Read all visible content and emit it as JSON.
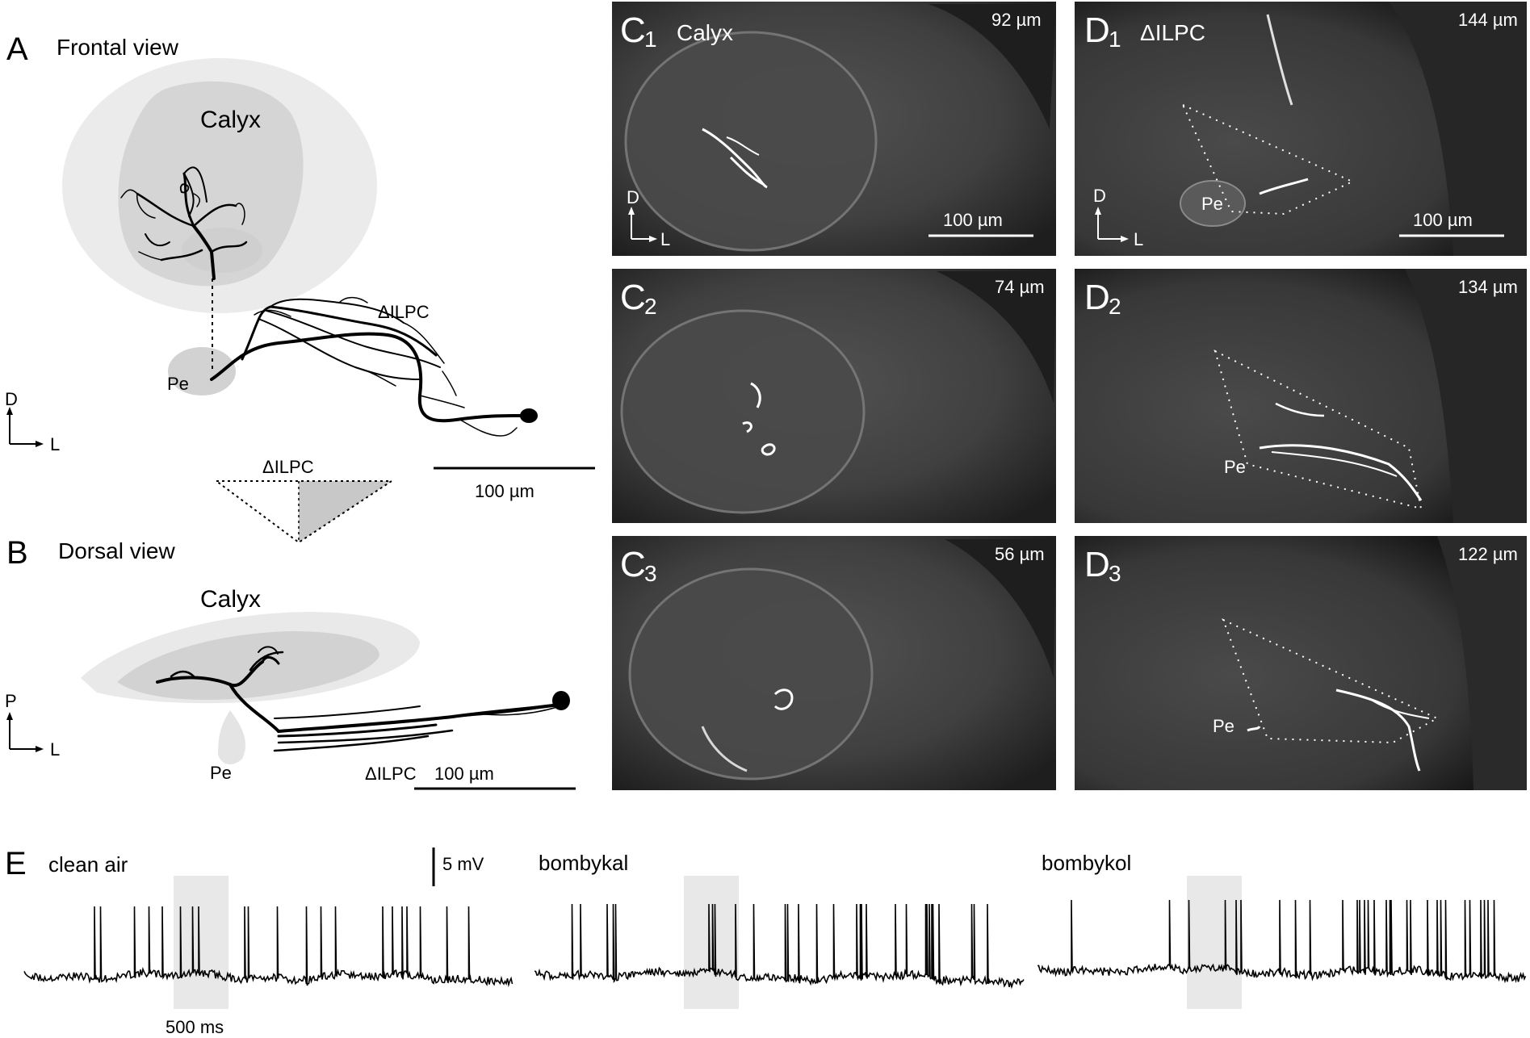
{
  "panels": {
    "A": {
      "letter": "A",
      "title": "Frontal view",
      "calyx": "Calyx",
      "ilpc": "ΔILPC",
      "pe": "Pe",
      "axis_v": "D",
      "axis_h": "L",
      "scale": "100 µm",
      "inset_label": "ΔILPC"
    },
    "B": {
      "letter": "B",
      "title": "Dorsal view",
      "calyx": "Calyx",
      "ilpc": "ΔILPC",
      "pe": "Pe",
      "axis_v": "P",
      "axis_h": "L",
      "scale": "100 µm"
    },
    "C": [
      {
        "letter": "C",
        "sub": "1",
        "title": "Calyx",
        "depth": "92 µm",
        "axis_v": "D",
        "axis_h": "L",
        "scale": "100 µm"
      },
      {
        "letter": "C",
        "sub": "2",
        "title": "",
        "depth": "74 µm"
      },
      {
        "letter": "C",
        "sub": "3",
        "title": "",
        "depth": "56 µm"
      }
    ],
    "D": [
      {
        "letter": "D",
        "sub": "1",
        "title": "ΔILPC",
        "depth": "144 µm",
        "pe": "Pe",
        "axis_v": "D",
        "axis_h": "L",
        "scale": "100 µm"
      },
      {
        "letter": "D",
        "sub": "2",
        "title": "",
        "depth": "134 µm",
        "pe": "Pe"
      },
      {
        "letter": "D",
        "sub": "3",
        "title": "",
        "depth": "122 µm",
        "pe": "Pe"
      }
    ],
    "E": {
      "letter": "E",
      "voltage_scale": "5 mV",
      "time_scale": "500 ms",
      "traces": [
        {
          "label": "clean air",
          "spikes": 22
        },
        {
          "label": "bombykal",
          "spikes": 30
        },
        {
          "label": "bombykol",
          "spikes": 33
        }
      ]
    }
  },
  "colors": {
    "trace": "#000000",
    "stim_shade": "#e8e8e8",
    "micro_bg": "#3a3a3a",
    "neuron": "#000000"
  }
}
